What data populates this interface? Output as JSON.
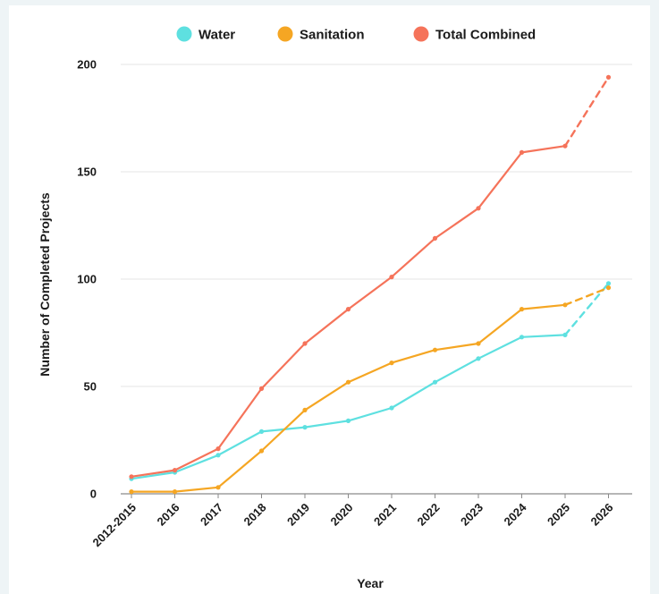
{
  "chart_data": {
    "type": "line",
    "xlabel": "Year",
    "ylabel": "Number of Completed Projects",
    "ylim": [
      0,
      200
    ],
    "yticks": [
      0,
      50,
      100,
      150,
      200
    ],
    "grid": "horizontal",
    "legend_position": "top",
    "categories": [
      "2012-2015",
      "2016",
      "2017",
      "2018",
      "2019",
      "2020",
      "2021",
      "2022",
      "2023",
      "2024",
      "2025",
      "2026"
    ],
    "projected_from_index": 10,
    "series": [
      {
        "name": "Water",
        "color": "#5ee0e0",
        "values": [
          7,
          10,
          18,
          29,
          31,
          34,
          40,
          52,
          63,
          73,
          74,
          98
        ]
      },
      {
        "name": "Sanitation",
        "color": "#f5a623",
        "values": [
          1,
          1,
          3,
          20,
          39,
          52,
          61,
          67,
          70,
          86,
          88,
          96
        ]
      },
      {
        "name": "Total Combined",
        "color": "#f5735a",
        "values": [
          8,
          11,
          21,
          49,
          70,
          86,
          101,
          119,
          133,
          159,
          162,
          194
        ]
      }
    ]
  }
}
